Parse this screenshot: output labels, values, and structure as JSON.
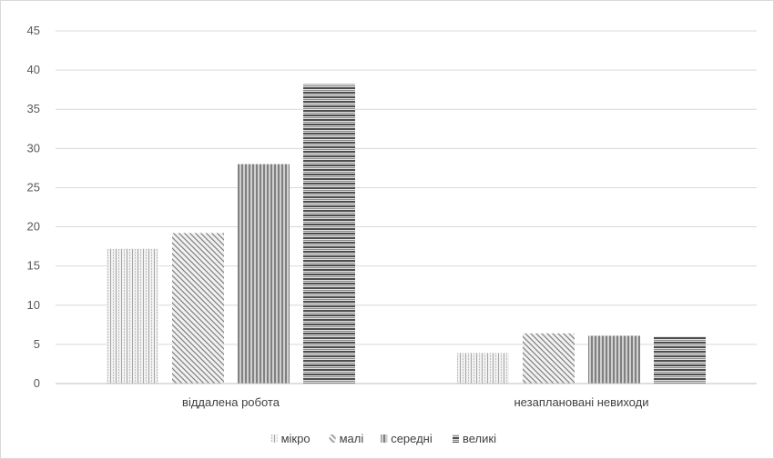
{
  "chart_data": {
    "type": "bar",
    "title": "",
    "xlabel": "",
    "ylabel": "",
    "categories": [
      "віддалена робота",
      "незаплановані невиходи"
    ],
    "series": [
      {
        "name": "мікро",
        "values": [
          17.2,
          3.9
        ],
        "pattern": "dotted-vertical"
      },
      {
        "name": "малі",
        "values": [
          19.2,
          6.4
        ],
        "pattern": "diagonal"
      },
      {
        "name": "середні",
        "values": [
          28.0,
          6.1
        ],
        "pattern": "vertical-stripes"
      },
      {
        "name": "великі",
        "values": [
          38.2,
          6.0
        ],
        "pattern": "horizontal-stripes"
      }
    ],
    "ylim": [
      0,
      45
    ],
    "yticks": [
      0,
      5,
      10,
      15,
      20,
      25,
      30,
      35,
      40,
      45
    ],
    "grid": true,
    "legend": "bottom-center",
    "colors": {
      "grid": "#d9d9d9",
      "axis": "#bfbfbf",
      "text": "#595959"
    }
  }
}
